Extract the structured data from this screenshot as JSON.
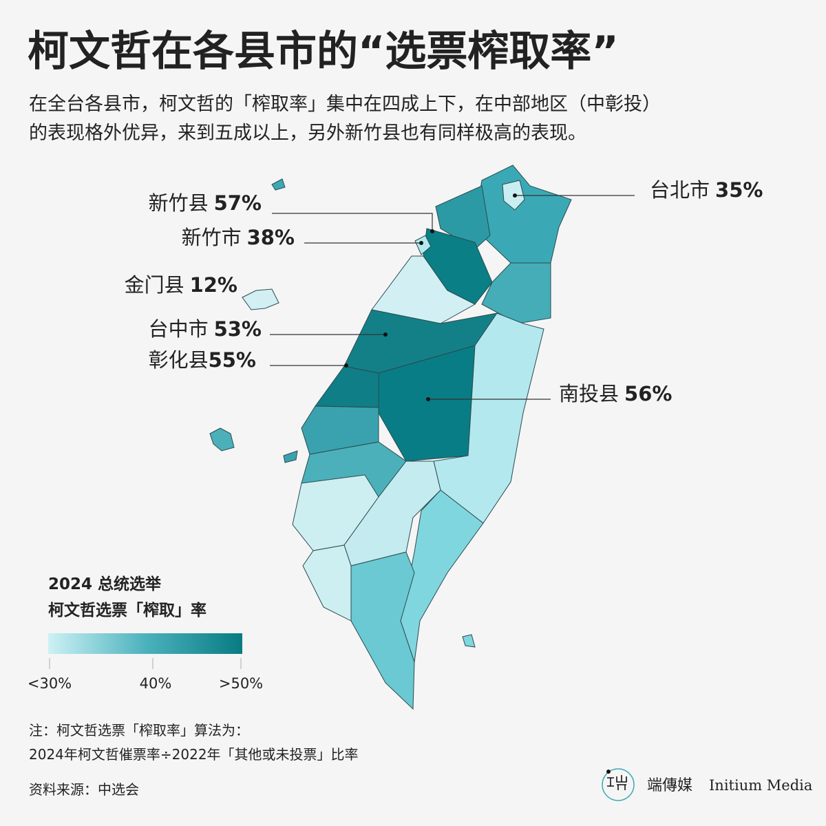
{
  "title": "柯文哲在各县市的“选票榨取率”",
  "subtitle": [
    "在全台各县市，柯文哲的「榨取率」集中在四成上下，在中部地区（中彰投）",
    "的表现格外优异，来到五成以上，另外新竹县也有同样极高的表现。"
  ],
  "callouts": [
    {
      "name": "新竹县",
      "value": "57%"
    },
    {
      "name": "新竹市",
      "value": "38%"
    },
    {
      "name": "金门县",
      "value": "12%"
    },
    {
      "name": "台中市",
      "value": "53%"
    },
    {
      "name": "彰化县",
      "value": "55%"
    },
    {
      "name": "台北市",
      "value": "35%"
    },
    {
      "name": "南投县",
      "value": "56%"
    }
  ],
  "legend": {
    "title": [
      "2024 总统选举",
      "柯文哲选票「榨取」率"
    ],
    "ticks": [
      "<30%",
      "40%",
      ">50%"
    ]
  },
  "notes": [
    "注：柯文哲选票「榨取率」算法为：",
    "2024年柯文哲催票率÷2022年「其他或未投票」比率"
  ],
  "source": "资料来源：中选会",
  "brand": {
    "cn": "端傳媒",
    "en": "Initium Media"
  }
}
